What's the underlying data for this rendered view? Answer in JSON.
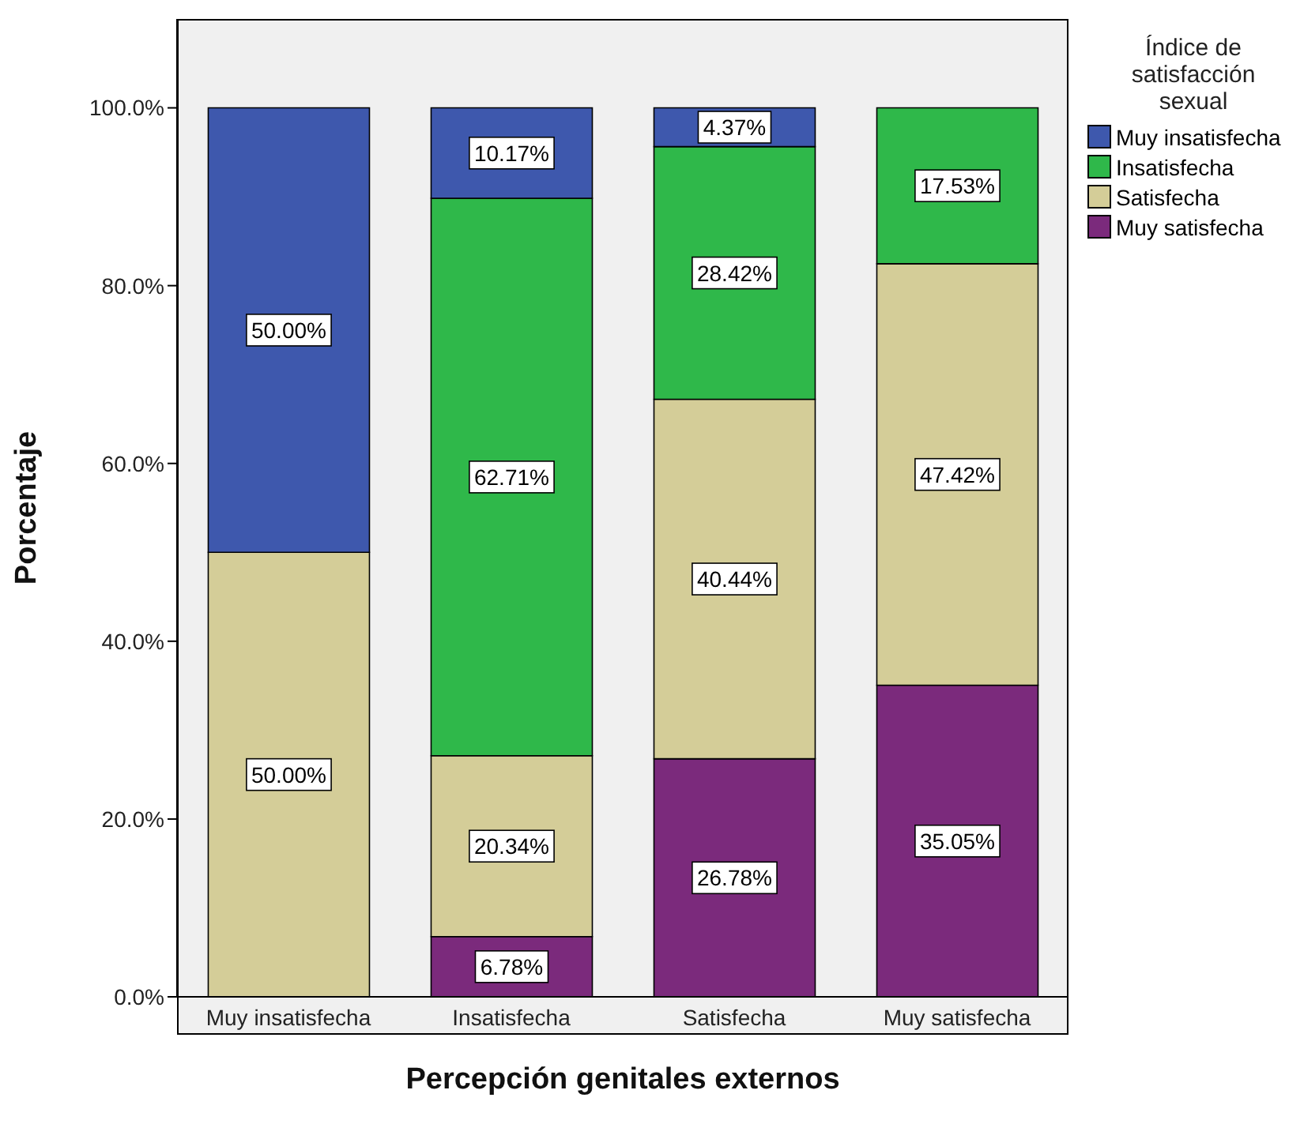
{
  "chart_data": {
    "type": "bar",
    "stacked": true,
    "xlabel": "Percepción genitales externos",
    "ylabel": "Porcentaje",
    "legend_title": "Índice de satisfacción sexual",
    "legend": "top right",
    "grid": false,
    "categories": [
      "Muy insatisfecha",
      "Insatisfecha",
      "Satisfecha",
      "Muy satisfecha"
    ],
    "ylim": [
      0,
      110
    ],
    "yticks": [
      {
        "value": 0,
        "label": "0.0%"
      },
      {
        "value": 20,
        "label": "20.0%"
      },
      {
        "value": 40,
        "label": "40.0%"
      },
      {
        "value": 60,
        "label": "60.0%"
      },
      {
        "value": 80,
        "label": "80.0%"
      },
      {
        "value": 100,
        "label": "100.0%"
      }
    ],
    "series": [
      {
        "name": "Muy satisfecha",
        "color": "#7b2a7c",
        "values": [
          null,
          6.78,
          26.78,
          35.05
        ],
        "value_labels": [
          null,
          "6.78%",
          "26.78%",
          "35.05%"
        ]
      },
      {
        "name": "Satisfecha",
        "color": "#d4cd98",
        "values": [
          50,
          20.34,
          40.44,
          47.42
        ],
        "value_labels": [
          "50.00%",
          "20.34%",
          "40.44%",
          "47.42%"
        ]
      },
      {
        "name": "Insatisfecha",
        "color": "#2fb84a",
        "values": [
          null,
          62.71,
          28.42,
          17.53
        ],
        "value_labels": [
          null,
          "62.71%",
          "28.42%",
          "17.53%"
        ]
      },
      {
        "name": "Muy insatisfecha",
        "color": "#3e58ad",
        "values": [
          50,
          10.17,
          4.37,
          null
        ],
        "value_labels": [
          "50.00%",
          "10.17%",
          "4.37%",
          null
        ]
      }
    ]
  }
}
